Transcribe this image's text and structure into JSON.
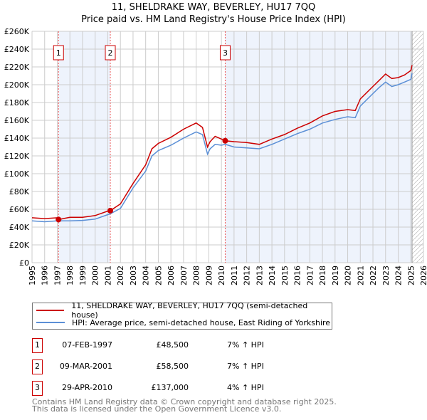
{
  "chart_data": {
    "type": "line",
    "title": "11, SHELDRAKE WAY, BEVERLEY, HU17 7QQ",
    "subtitle": "Price paid vs. HM Land Registry's House Price Index (HPI)",
    "xlim": [
      1995,
      2026
    ],
    "ylim": [
      0,
      260000
    ],
    "x_ticks": [
      "1995",
      "1996",
      "1997",
      "1998",
      "1999",
      "2000",
      "2001",
      "2002",
      "2003",
      "2004",
      "2005",
      "2006",
      "2007",
      "2008",
      "2009",
      "2010",
      "2011",
      "2012",
      "2013",
      "2014",
      "2015",
      "2016",
      "2017",
      "2018",
      "2019",
      "2020",
      "2021",
      "2022",
      "2023",
      "2024",
      "2025",
      "2026"
    ],
    "y_ticks": [
      "£0",
      "£20K",
      "£40K",
      "£60K",
      "£80K",
      "£100K",
      "£120K",
      "£140K",
      "£160K",
      "£180K",
      "£200K",
      "£220K",
      "£240K",
      "£260K"
    ],
    "grid": true,
    "series": [
      {
        "name": "11, SHELDRAKE WAY, BEVERLEY, HU17 7QQ (semi-detached house)",
        "color": "#cc0000",
        "x": [
          1995,
          1996,
          1997,
          1997.1,
          1998,
          1999,
          2000,
          2001,
          2001.2,
          2002,
          2003,
          2004,
          2004.5,
          2005,
          2006,
          2007,
          2008,
          2008.5,
          2008.9,
          2009.1,
          2009.5,
          2010,
          2010.3,
          2011,
          2012,
          2013,
          2014,
          2015,
          2016,
          2017,
          2018,
          2019,
          2020,
          2020.6,
          2021,
          2022,
          2022.5,
          2023,
          2023.5,
          2024,
          2024.5,
          2025,
          2025.1
        ],
        "y": [
          50500,
          49500,
          50500,
          48500,
          51000,
          51000,
          53000,
          58000,
          58500,
          66000,
          89000,
          110000,
          128000,
          134000,
          141000,
          150000,
          157000,
          152000,
          130000,
          136000,
          142000,
          139000,
          137000,
          136000,
          135000,
          133000,
          139000,
          144000,
          151000,
          157000,
          165000,
          170000,
          172000,
          171000,
          184000,
          198000,
          205000,
          212000,
          207000,
          208000,
          211000,
          216000,
          222000
        ]
      },
      {
        "name": "HPI: Average price, semi-detached house, East Riding of Yorkshire",
        "color": "#5b8fd6",
        "x": [
          1995,
          1996,
          1997,
          1998,
          1999,
          2000,
          2001,
          2001.2,
          2002,
          2003,
          2004,
          2004.5,
          2005,
          2006,
          2007,
          2008,
          2008.5,
          2008.9,
          2009.1,
          2009.5,
          2010,
          2010.3,
          2011,
          2012,
          2013,
          2014,
          2015,
          2016,
          2017,
          2018,
          2019,
          2020,
          2020.6,
          2021,
          2022,
          2022.5,
          2023,
          2023.5,
          2024,
          2024.5,
          2025,
          2025.1
        ],
        "y": [
          47000,
          46000,
          47000,
          47000,
          47500,
          49000,
          54000,
          55000,
          61000,
          84000,
          103000,
          120000,
          126000,
          132000,
          140000,
          147000,
          144000,
          122000,
          128000,
          133000,
          132000,
          133000,
          130000,
          129000,
          128000,
          133000,
          139000,
          145000,
          150000,
          157000,
          161000,
          164000,
          163000,
          176000,
          190000,
          197000,
          203000,
          198000,
          200000,
          203000,
          206000,
          213000
        ]
      }
    ],
    "sales": [
      {
        "label": "1",
        "date": "07-FEB-1997",
        "x": 1997.1,
        "price": "£48,500",
        "value": 48500,
        "hpi": "7% ↑ HPI"
      },
      {
        "label": "2",
        "date": "09-MAR-2001",
        "x": 2001.2,
        "price": "£58,500",
        "value": 58500,
        "hpi": "7% ↑ HPI"
      },
      {
        "label": "3",
        "date": "29-APR-2010",
        "x": 2010.3,
        "price": "£137,000",
        "value": 137000,
        "hpi": "4% ↑ HPI"
      }
    ],
    "shaded_ranges": [
      [
        1997.1,
        2001.2
      ],
      [
        2010.3,
        2025.1
      ]
    ],
    "hatched_range": [
      2025.1,
      2026
    ],
    "legend_position": "below"
  },
  "footer": [
    "Contains HM Land Registry data © Crown copyright and database right 2025.",
    "This data is licensed under the Open Government Licence v3.0."
  ]
}
